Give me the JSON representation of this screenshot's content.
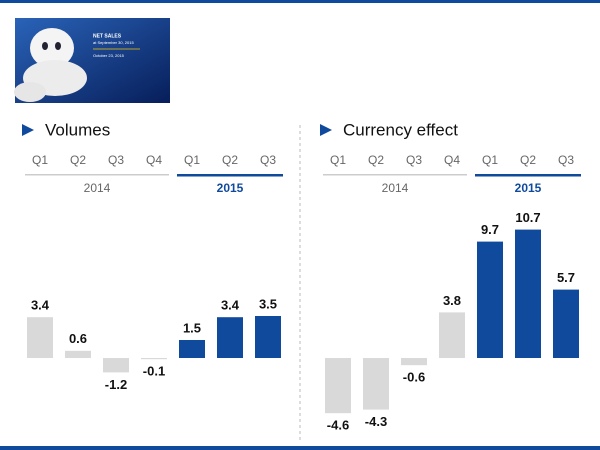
{
  "thumbnail": {
    "title": "NET SALES",
    "subtitle": "at September 30, 2015",
    "date": "October 23, 2015"
  },
  "chart_data": [
    {
      "type": "bar",
      "title": "Volumes",
      "series": [
        {
          "name": "2014",
          "color": "#d9d9d9",
          "categories": [
            "Q1",
            "Q2",
            "Q3",
            "Q4"
          ],
          "values": [
            3.4,
            0.6,
            -1.2,
            -0.1
          ]
        },
        {
          "name": "2015",
          "color": "#0f4a9c",
          "categories": [
            "Q1",
            "Q2",
            "Q3"
          ],
          "values": [
            1.5,
            3.4,
            3.5
          ]
        }
      ]
    },
    {
      "type": "bar",
      "title": "Currency effect",
      "series": [
        {
          "name": "2014",
          "color": "#d9d9d9",
          "categories": [
            "Q1",
            "Q2",
            "Q3",
            "Q4"
          ],
          "values": [
            -4.6,
            -4.3,
            -0.6,
            3.8
          ]
        },
        {
          "name": "2015",
          "color": "#0f4a9c",
          "categories": [
            "Q1",
            "Q2",
            "Q3"
          ],
          "values": [
            9.7,
            10.7,
            5.7
          ]
        }
      ]
    }
  ]
}
